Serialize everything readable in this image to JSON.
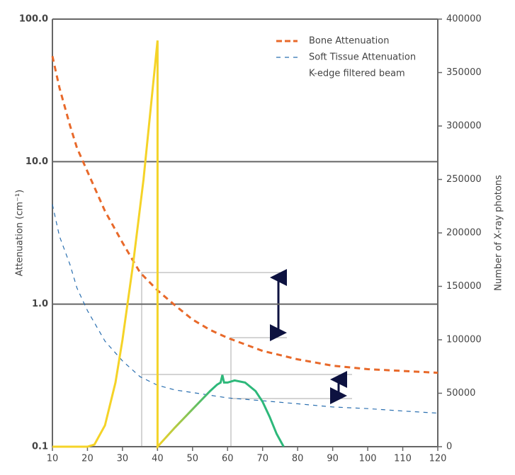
{
  "chart_data": {
    "type": "line",
    "xlabel": "",
    "ylabel": "Attenuation (cm⁻¹)",
    "y2label": "Number of X-ray photons",
    "xlim": [
      10,
      120
    ],
    "xticks": [
      10,
      20,
      30,
      40,
      50,
      60,
      70,
      80,
      90,
      100,
      110,
      120
    ],
    "ylim": [
      0.1,
      100
    ],
    "yscale": "log",
    "yticks": [
      {
        "value": 0.1,
        "label": "0.1"
      },
      {
        "value": 1,
        "label": "1.0"
      },
      {
        "value": 10,
        "label": "10.0"
      },
      {
        "value": 100,
        "label": "100.0"
      }
    ],
    "y2lim": [
      0,
      400000
    ],
    "y2ticks": [
      0,
      50000,
      100000,
      150000,
      200000,
      250000,
      300000,
      350000,
      400000
    ],
    "grid": true,
    "legend": "upper right",
    "series": [
      {
        "name": "Bone Attenuation",
        "color": "#e8692a",
        "style": "dashed",
        "x": [
          10,
          12,
          15,
          17,
          20,
          25,
          30,
          35,
          40,
          45,
          50,
          55,
          60,
          70,
          80,
          90,
          100,
          110,
          120
        ],
        "values": [
          55,
          33,
          18,
          12.5,
          8.5,
          4.5,
          2.7,
          1.67,
          1.25,
          0.98,
          0.78,
          0.66,
          0.58,
          0.47,
          0.41,
          0.37,
          0.35,
          0.34,
          0.33
        ]
      },
      {
        "name": "Soft Tissue Attenuation",
        "color": "#2a6fb0",
        "style": "dashed",
        "x": [
          10,
          12,
          15,
          17,
          20,
          25,
          30,
          35,
          40,
          45,
          50,
          60,
          70,
          80,
          90,
          100,
          110,
          120
        ],
        "values": [
          5.0,
          3.0,
          1.9,
          1.3,
          0.9,
          0.55,
          0.4,
          0.31,
          0.27,
          0.25,
          0.24,
          0.22,
          0.21,
          0.2,
          0.19,
          0.185,
          0.178,
          0.172
        ]
      },
      {
        "name": "K-edge filtered beam",
        "color": [
          "#f5d327",
          "#2db87a"
        ],
        "style": "solid",
        "axis": "y2",
        "x": [
          10,
          20,
          22,
          25,
          28,
          30,
          33,
          36,
          40,
          40,
          45,
          50,
          55,
          57,
          58,
          58.5,
          59,
          60,
          62,
          65,
          68,
          70,
          72,
          74,
          76
        ],
        "values": [
          0,
          0,
          2000,
          20000,
          60000,
          100000,
          170000,
          250000,
          380000,
          0,
          18000,
          35000,
          52000,
          58000,
          60000,
          67000,
          60000,
          60000,
          62000,
          60000,
          52000,
          42000,
          28000,
          12000,
          0
        ]
      }
    ]
  }
}
